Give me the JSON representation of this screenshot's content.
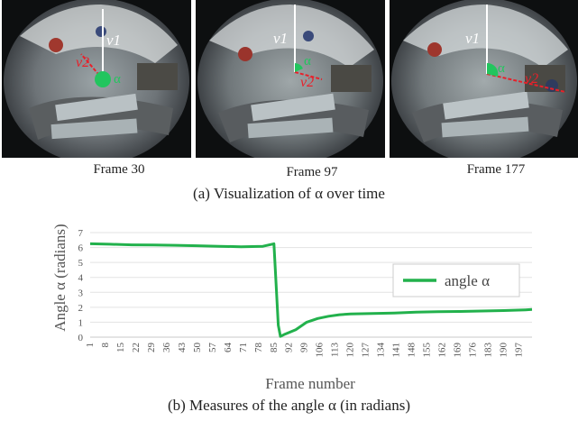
{
  "figure": {
    "frames": [
      {
        "label": "Frame 30"
      },
      {
        "label": "Frame 97"
      },
      {
        "label": "Frame 177"
      }
    ],
    "overlay": {
      "v1": "v1",
      "v2": "v2",
      "alpha": "α"
    },
    "caption_a": "(a) Visualization of α over time",
    "caption_b": "(b) Measures of the angle α (in radians)",
    "colors": {
      "series": "#22b14c",
      "vector_v1": "#ffffff",
      "vector_v2": "#e8202a",
      "angle": "#22c55e"
    }
  },
  "chart_data": {
    "type": "line",
    "title": "",
    "xlabel": "Frame number",
    "ylabel": "Angle α (radians)",
    "ylim": [
      0,
      7
    ],
    "yticks": [
      "0",
      "1",
      "2",
      "3",
      "4",
      "5",
      "6",
      "7"
    ],
    "xtick_labels": [
      "1",
      "8",
      "15",
      "22",
      "29",
      "36",
      "43",
      "50",
      "57",
      "64",
      "71",
      "78",
      "85",
      "92",
      "99",
      "106",
      "113",
      "120",
      "127",
      "134",
      "141",
      "148",
      "155",
      "162",
      "169",
      "176",
      "183",
      "190",
      "197"
    ],
    "xlim": [
      1,
      203
    ],
    "grid": "horizontal",
    "legend": "right",
    "series": [
      {
        "name": "angle α",
        "x": [
          1,
          10,
          20,
          30,
          40,
          50,
          60,
          70,
          80,
          85,
          87,
          88,
          90,
          95,
          97,
          100,
          105,
          110,
          115,
          120,
          130,
          140,
          150,
          160,
          170,
          180,
          190,
          200,
          203
        ],
        "y": [
          6.25,
          6.22,
          6.18,
          6.17,
          6.15,
          6.12,
          6.08,
          6.05,
          6.08,
          6.25,
          0.8,
          0.05,
          0.2,
          0.5,
          0.7,
          1.0,
          1.25,
          1.4,
          1.5,
          1.55,
          1.58,
          1.62,
          1.68,
          1.7,
          1.72,
          1.75,
          1.78,
          1.83,
          1.85
        ]
      }
    ]
  }
}
